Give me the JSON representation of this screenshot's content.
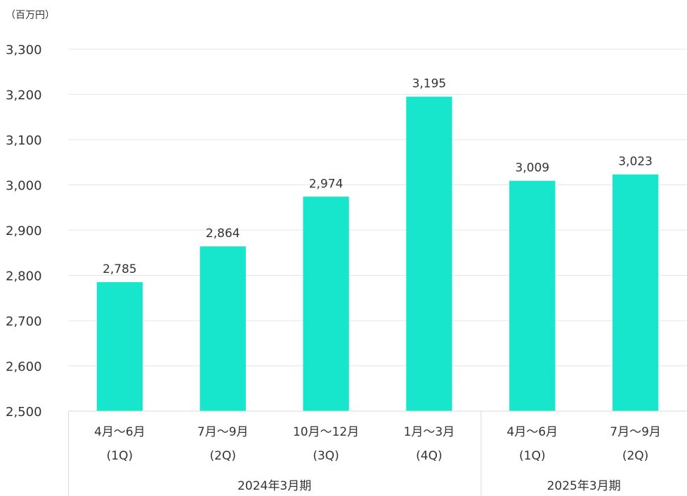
{
  "chart_data": {
    "type": "bar",
    "unit_label": "（百万円）",
    "categories": [
      [
        "4月〜6月",
        "(1Q)"
      ],
      [
        "7月〜9月",
        "(2Q)"
      ],
      [
        "10月〜12月",
        "(3Q)"
      ],
      [
        "1月〜3月",
        "(4Q)"
      ],
      [
        "4月〜6月",
        "(1Q)"
      ],
      [
        "7月〜9月",
        "(2Q)"
      ]
    ],
    "values": [
      2785,
      2864,
      2974,
      3195,
      3009,
      3023
    ],
    "value_labels": [
      "2,785",
      "2,864",
      "2,974",
      "3,195",
      "3,009",
      "3,023"
    ],
    "groups": [
      {
        "label": "2024年3月期",
        "count": 4
      },
      {
        "label": "2025年3月期",
        "count": 2
      }
    ],
    "ylim": [
      2500,
      3300
    ],
    "yticks": [
      "2,500",
      "2,600",
      "2,700",
      "2,800",
      "2,900",
      "3,000",
      "3,100",
      "3,200",
      "3,300"
    ],
    "grid": true,
    "bar_color": "#17e5cc",
    "grid_color": "#e6e6e6",
    "axis_color": "#d9d9d9"
  }
}
